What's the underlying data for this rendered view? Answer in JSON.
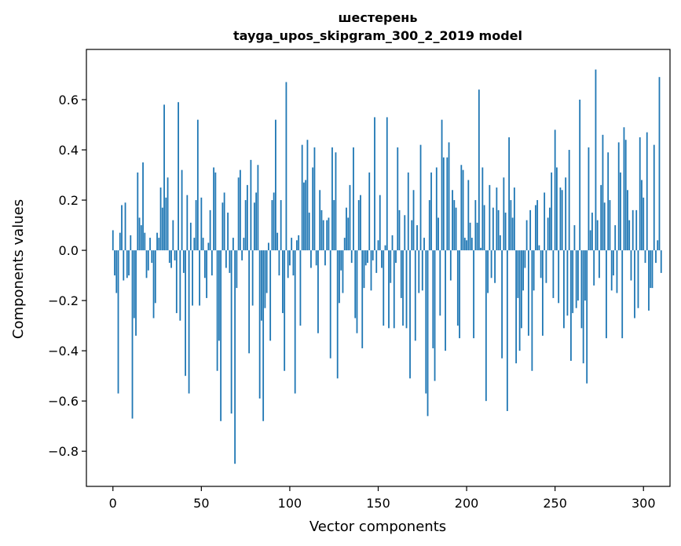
{
  "chart_data": {
    "type": "bar",
    "title_line1": "шестерень",
    "title_line2": "tayga_upos_skipgram_300_2_2019 model",
    "xlabel": "Vector components",
    "ylabel": "Components values",
    "xlim": [
      -15,
      315
    ],
    "ylim": [
      -0.94,
      0.8
    ],
    "x_ticks": [
      0,
      50,
      100,
      150,
      200,
      250,
      300
    ],
    "x_tick_labels": [
      "0",
      "50",
      "100",
      "150",
      "200",
      "250",
      "300"
    ],
    "y_ticks": [
      -0.8,
      -0.6,
      -0.4,
      -0.2,
      0.0,
      0.2,
      0.4,
      0.6
    ],
    "y_tick_labels": [
      "−0.8",
      "−0.6",
      "−0.4",
      "−0.2",
      "0.0",
      "0.2",
      "0.4",
      "0.6"
    ],
    "bar_color": "#1f77b4",
    "values": [
      0.08,
      -0.1,
      -0.17,
      -0.57,
      0.07,
      0.18,
      -0.12,
      0.19,
      -0.11,
      -0.1,
      0.06,
      -0.67,
      -0.27,
      -0.34,
      0.31,
      0.13,
      0.1,
      0.35,
      0.07,
      -0.11,
      -0.08,
      0.05,
      -0.05,
      -0.27,
      -0.21,
      0.07,
      0.05,
      0.25,
      0.17,
      0.58,
      0.21,
      0.29,
      -0.05,
      -0.07,
      0.12,
      -0.04,
      -0.25,
      0.59,
      -0.28,
      0.32,
      -0.09,
      -0.5,
      0.22,
      -0.57,
      0.11,
      -0.22,
      0.05,
      0.2,
      0.52,
      -0.22,
      0.21,
      0.05,
      -0.11,
      -0.19,
      0.03,
      0.16,
      -0.1,
      0.33,
      0.31,
      -0.48,
      -0.36,
      -0.68,
      0.19,
      0.23,
      -0.07,
      0.15,
      -0.09,
      -0.65,
      0.05,
      -0.85,
      -0.15,
      0.29,
      0.32,
      -0.04,
      0.05,
      0.2,
      0.26,
      -0.41,
      0.36,
      -0.22,
      0.19,
      0.23,
      0.34,
      -0.59,
      -0.28,
      -0.68,
      -0.23,
      -0.17,
      0.03,
      -0.36,
      0.2,
      0.23,
      0.52,
      0.07,
      -0.1,
      0.2,
      -0.25,
      -0.48,
      0.67,
      -0.11,
      -0.06,
      0.05,
      -0.1,
      -0.57,
      0.04,
      0.06,
      -0.3,
      0.42,
      0.27,
      0.28,
      0.44,
      0.15,
      -0.07,
      0.33,
      0.41,
      -0.06,
      -0.33,
      0.24,
      0.16,
      0.12,
      -0.06,
      0.12,
      0.13,
      -0.43,
      0.41,
      0.2,
      0.39,
      -0.51,
      -0.21,
      -0.08,
      -0.17,
      0.05,
      0.17,
      0.13,
      0.26,
      -0.05,
      0.41,
      -0.27,
      -0.33,
      0.2,
      0.22,
      -0.39,
      -0.15,
      -0.06,
      -0.05,
      0.31,
      -0.16,
      -0.04,
      0.53,
      -0.09,
      0.04,
      0.22,
      -0.07,
      -0.3,
      0.02,
      0.53,
      -0.31,
      -0.13,
      0.06,
      -0.31,
      -0.05,
      0.41,
      0.16,
      -0.19,
      -0.3,
      0.14,
      -0.31,
      0.31,
      -0.51,
      0.12,
      0.24,
      -0.36,
      0.1,
      -0.17,
      0.42,
      -0.16,
      0.05,
      -0.57,
      -0.66,
      0.2,
      0.31,
      -0.39,
      -0.52,
      0.33,
      0.13,
      -0.26,
      0.52,
      0.37,
      -0.4,
      0.37,
      0.43,
      -0.12,
      0.24,
      0.2,
      0.17,
      -0.3,
      -0.35,
      0.34,
      0.32,
      0.05,
      0.04,
      0.28,
      0.11,
      0.05,
      -0.35,
      0.2,
      0.11,
      0.64,
      0.01,
      0.33,
      0.18,
      -0.6,
      -0.17,
      0.26,
      -0.11,
      0.17,
      -0.13,
      0.25,
      0.16,
      0.06,
      -0.43,
      0.29,
      0.15,
      -0.64,
      0.45,
      0.2,
      0.13,
      0.25,
      -0.45,
      -0.19,
      -0.4,
      -0.31,
      -0.16,
      -0.07,
      0.12,
      -0.34,
      0.16,
      -0.48,
      -0.16,
      0.18,
      0.2,
      0.02,
      -0.11,
      -0.34,
      0.23,
      -0.13,
      0.13,
      0.17,
      0.31,
      -0.19,
      0.48,
      0.33,
      -0.21,
      0.25,
      0.24,
      -0.31,
      0.29,
      -0.26,
      0.4,
      -0.44,
      -0.25,
      0.1,
      -0.23,
      -0.2,
      0.6,
      -0.31,
      -0.45,
      -0.2,
      -0.53,
      0.41,
      0.08,
      0.15,
      -0.14,
      0.72,
      0.12,
      -0.11,
      0.26,
      0.46,
      0.19,
      -0.35,
      0.39,
      0.2,
      -0.16,
      -0.1,
      0.1,
      -0.17,
      0.43,
      0.31,
      -0.35,
      0.49,
      0.44,
      0.24,
      0.12,
      -0.12,
      0.16,
      -0.27,
      0.16,
      -0.23,
      0.45,
      0.28,
      0.21,
      -0.05,
      0.47,
      -0.24,
      -0.15,
      -0.15,
      0.42,
      -0.05,
      0.04,
      0.69,
      -0.09
    ]
  }
}
